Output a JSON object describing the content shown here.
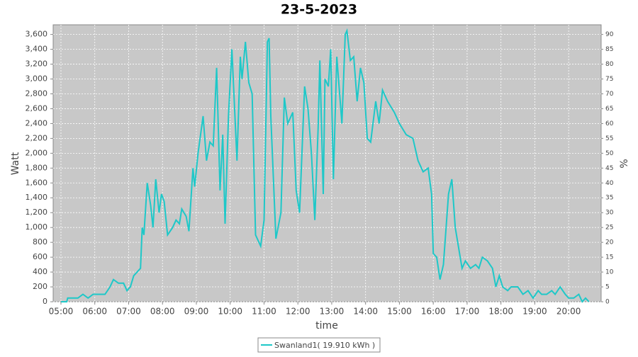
{
  "chart_data": {
    "type": "line",
    "title": "23-5-2023",
    "x_label": "time",
    "y_label": "Watt",
    "y2_label": "%",
    "x": [
      5.0,
      5.17,
      5.2,
      5.5,
      5.65,
      5.8,
      5.95,
      6.3,
      6.45,
      6.55,
      6.7,
      6.85,
      6.95,
      7.05,
      7.15,
      7.35,
      7.4,
      7.45,
      7.55,
      7.65,
      7.72,
      7.8,
      7.9,
      7.97,
      8.05,
      8.15,
      8.3,
      8.4,
      8.5,
      8.57,
      8.7,
      8.78,
      8.9,
      8.95,
      9.05,
      9.2,
      9.3,
      9.4,
      9.5,
      9.6,
      9.7,
      9.78,
      9.85,
      9.95,
      10.05,
      10.1,
      10.2,
      10.3,
      10.35,
      10.45,
      10.55,
      10.65,
      10.75,
      10.9,
      11.0,
      11.1,
      11.15,
      11.2,
      11.35,
      11.5,
      11.6,
      11.7,
      11.85,
      11.95,
      12.05,
      12.2,
      12.3,
      12.4,
      12.5,
      12.6,
      12.65,
      12.75,
      12.8,
      12.9,
      12.97,
      13.05,
      13.15,
      13.3,
      13.4,
      13.45,
      13.55,
      13.65,
      13.75,
      13.85,
      13.95,
      14.05,
      14.15,
      14.3,
      14.4,
      14.5,
      14.65,
      14.85,
      15.0,
      15.2,
      15.4,
      15.55,
      15.7,
      15.85,
      15.95,
      16.0,
      16.1,
      16.2,
      16.3,
      16.45,
      16.55,
      16.65,
      16.85,
      16.95,
      17.1,
      17.25,
      17.35,
      17.45,
      17.6,
      17.75,
      17.85,
      17.95,
      18.05,
      18.2,
      18.3,
      18.5,
      18.65,
      18.8,
      18.95,
      19.1,
      19.2,
      19.35,
      19.5,
      19.6,
      19.75,
      19.9,
      20.0,
      20.15,
      20.3,
      20.4,
      20.5,
      20.6
    ],
    "series": [
      {
        "name": "Swanland1( 19.910 kWh )",
        "color": "#1ec8c8",
        "values": [
          0,
          0,
          50,
          50,
          100,
          50,
          100,
          100,
          200,
          300,
          250,
          250,
          150,
          200,
          350,
          450,
          1000,
          900,
          1600,
          1300,
          1000,
          1650,
          1200,
          1450,
          1350,
          900,
          1000,
          1100,
          1050,
          1250,
          1150,
          950,
          1800,
          1550,
          2000,
          2500,
          1900,
          2150,
          2100,
          3150,
          1500,
          2250,
          1050,
          2500,
          3400,
          2900,
          1900,
          3300,
          3000,
          3500,
          2950,
          2800,
          900,
          750,
          1100,
          3500,
          3550,
          2500,
          850,
          1200,
          2750,
          2400,
          2550,
          1500,
          1200,
          2900,
          2600,
          2000,
          1100,
          2350,
          3250,
          1450,
          3000,
          2900,
          3400,
          1650,
          3300,
          2400,
          3600,
          3650,
          3250,
          3300,
          2700,
          3150,
          2950,
          2200,
          2150,
          2700,
          2400,
          2850,
          2700,
          2550,
          2400,
          2250,
          2200,
          1900,
          1750,
          1800,
          1450,
          650,
          600,
          300,
          500,
          1450,
          1650,
          1000,
          450,
          550,
          450,
          500,
          450,
          600,
          550,
          450,
          200,
          350,
          200,
          150,
          200,
          200,
          100,
          150,
          50,
          150,
          100,
          100,
          150,
          100,
          200,
          100,
          50,
          50,
          100,
          0,
          50,
          0
        ]
      }
    ],
    "xlim": [
      4.77,
      20.96
    ],
    "xticks": [
      {
        "value": 5,
        "label": "05:00"
      },
      {
        "value": 6,
        "label": "06:00"
      },
      {
        "value": 7,
        "label": "07:00"
      },
      {
        "value": 8,
        "label": "08:00"
      },
      {
        "value": 9,
        "label": "09:00"
      },
      {
        "value": 10,
        "label": "10:00"
      },
      {
        "value": 11,
        "label": "11:00"
      },
      {
        "value": 12,
        "label": "12:00"
      },
      {
        "value": 13,
        "label": "13:00"
      },
      {
        "value": 14,
        "label": "14:00"
      },
      {
        "value": 15,
        "label": "15:00"
      },
      {
        "value": 16,
        "label": "16:00"
      },
      {
        "value": 17,
        "label": "17:00"
      },
      {
        "value": 18,
        "label": "18:00"
      },
      {
        "value": 19,
        "label": "19:00"
      },
      {
        "value": 20,
        "label": "20:00"
      }
    ],
    "ylim": [
      0,
      3730
    ],
    "yticks": [
      0,
      200,
      400,
      600,
      800,
      {
        "value": 1000,
        "label": "1,000"
      },
      {
        "value": 1200,
        "label": "1,200"
      },
      {
        "value": 1400,
        "label": "1,400"
      },
      {
        "value": 1600,
        "label": "1,600"
      },
      {
        "value": 1800,
        "label": "1,800"
      },
      {
        "value": 2000,
        "label": "2,000"
      },
      {
        "value": 2200,
        "label": "2,200"
      },
      {
        "value": 2400,
        "label": "2,400"
      },
      {
        "value": 2600,
        "label": "2,600"
      },
      {
        "value": 2800,
        "label": "2,800"
      },
      {
        "value": 3000,
        "label": "3,000"
      },
      {
        "value": 3200,
        "label": "3,200"
      },
      {
        "value": 3400,
        "label": "3,400"
      },
      {
        "value": 3600,
        "label": "3,600"
      }
    ],
    "y2lim": [
      0,
      93.25
    ],
    "y2ticks": [
      0,
      5,
      10,
      15,
      20,
      25,
      30,
      35,
      40,
      45,
      50,
      55,
      60,
      65,
      70,
      75,
      80,
      85,
      90
    ],
    "grid": true,
    "plot_background": "#c8c8c8",
    "legend": "bottom"
  }
}
